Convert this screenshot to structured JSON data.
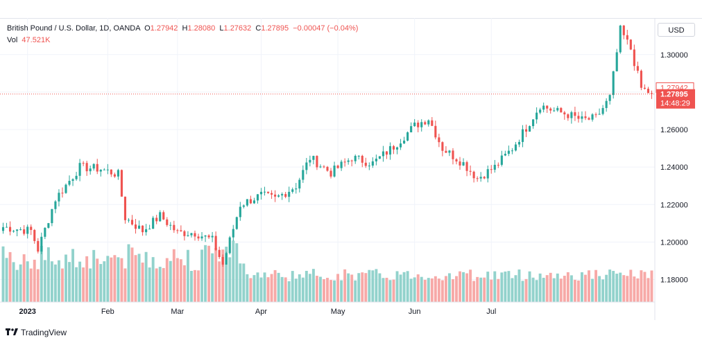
{
  "legend": {
    "symbol": "British Pound / U.S. Dollar, 1D, OANDA",
    "open_label": "O",
    "open": "1.27942",
    "high_label": "H",
    "high": "1.28080",
    "low_label": "L",
    "low": "1.27632",
    "close_label": "C",
    "close": "1.27895",
    "change": "−0.00047 (−0.04%)",
    "vol_label": "Vol",
    "vol": "47.521K"
  },
  "currency": "USD",
  "price_tags": {
    "open": "1.27942",
    "last": "1.27895",
    "countdown": "14:48:29"
  },
  "footer": {
    "brand": "TradingView"
  },
  "colors": {
    "up": "#26a69a",
    "down": "#ef5350",
    "up_vol": "#92d2cc",
    "down_vol": "#f7a9a7",
    "grid": "#f0f3fa",
    "text": "#131722"
  },
  "chart_data": {
    "type": "candlestick",
    "y_ticks": [
      "1.30000",
      "1.28000",
      "1.26000",
      "1.24000",
      "1.22000",
      "1.20000",
      "1.18000"
    ],
    "x_ticks": [
      "2023",
      "Feb",
      "Mar",
      "Apr",
      "May",
      "Jun",
      "Jul"
    ],
    "ylim": [
      1.168,
      1.3195
    ],
    "waypoints": [
      [
        0,
        1.208
      ],
      [
        8,
        1.206
      ],
      [
        10,
        1.196
      ],
      [
        15,
        1.223
      ],
      [
        22,
        1.24
      ],
      [
        28,
        1.239
      ],
      [
        33,
        1.236
      ],
      [
        35,
        1.213
      ],
      [
        40,
        1.206
      ],
      [
        45,
        1.214
      ],
      [
        50,
        1.205
      ],
      [
        55,
        1.205
      ],
      [
        60,
        1.201
      ],
      [
        63,
        1.188
      ],
      [
        68,
        1.22
      ],
      [
        74,
        1.225
      ],
      [
        78,
        1.223
      ],
      [
        84,
        1.23
      ],
      [
        88,
        1.245
      ],
      [
        94,
        1.237
      ],
      [
        100,
        1.245
      ],
      [
        106,
        1.242
      ],
      [
        112,
        1.251
      ],
      [
        118,
        1.262
      ],
      [
        122,
        1.266
      ],
      [
        126,
        1.25
      ],
      [
        132,
        1.242
      ],
      [
        136,
        1.234
      ],
      [
        141,
        1.24
      ],
      [
        146,
        1.25
      ],
      [
        150,
        1.261
      ],
      [
        154,
        1.273
      ],
      [
        158,
        1.27
      ],
      [
        162,
        1.268
      ],
      [
        166,
        1.265
      ],
      [
        170,
        1.266
      ],
      [
        174,
        1.277
      ],
      [
        177,
        1.313
      ],
      [
        180,
        1.303
      ],
      [
        183,
        1.282
      ],
      [
        186,
        1.279
      ]
    ],
    "candle_count": 187,
    "last": {
      "open": 1.27942,
      "high": 1.2808,
      "low": 1.27632,
      "close": 1.27895
    }
  }
}
